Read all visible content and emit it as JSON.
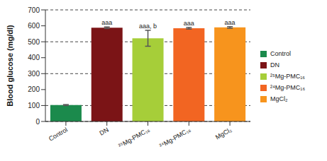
{
  "chart_data": {
    "type": "bar",
    "y_label": "Blood glucose (mg/dl)",
    "categories": [
      "Control",
      "DN",
      "²⁵Mg-PMC₁₆",
      "²⁴Mg-PMC₁₆",
      "MgCl₂"
    ],
    "values": [
      103,
      588,
      522,
      585,
      590
    ],
    "errors": [
      3,
      5,
      50,
      5,
      5
    ],
    "colors": [
      "#1b8a4c",
      "#7b1416",
      "#a6ce39",
      "#f26522",
      "#f7941d"
    ],
    "annotations": [
      {
        "category": "DN",
        "text": "aaa"
      },
      {
        "category": "²⁵Mg-PMC₁₆",
        "text": "aaa, b"
      },
      {
        "category": "²⁴Mg-PMC₁₆",
        "text": "aaa"
      },
      {
        "category": "MgCl₂",
        "text": "aaa"
      }
    ],
    "ylim": [
      0,
      700
    ],
    "yticks": [
      0,
      100,
      200,
      300,
      400,
      500,
      600,
      700
    ],
    "grid": true,
    "legend": "right"
  }
}
